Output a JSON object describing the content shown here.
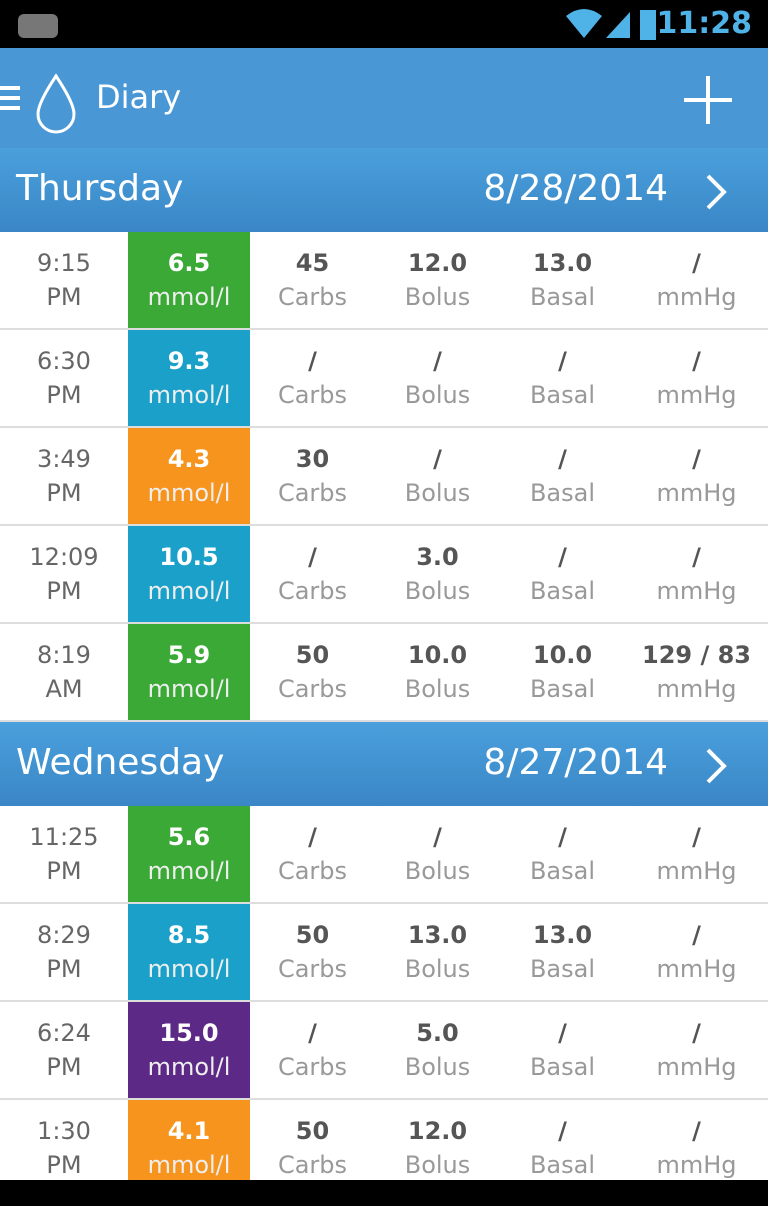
{
  "status_bar": {
    "time": "11:28"
  },
  "app_bar": {
    "title": "Diary"
  },
  "labels": {
    "unit": "mmol/l",
    "carbs": "Carbs",
    "bolus": "Bolus",
    "basal": "Basal",
    "pressure": "mmHg"
  },
  "days": [
    {
      "name": "Thursday",
      "date": "8/28/2014",
      "entries": [
        {
          "time": "9:15",
          "period": "PM",
          "glucose": "6.5",
          "color": "#3aa935",
          "carbs": "45",
          "bolus": "12.0",
          "basal": "13.0",
          "pressure": "/"
        },
        {
          "time": "6:30",
          "period": "PM",
          "glucose": "9.3",
          "color": "#1ba1c9",
          "carbs": "/",
          "bolus": "/",
          "basal": "/",
          "pressure": "/"
        },
        {
          "time": "3:49",
          "period": "PM",
          "glucose": "4.3",
          "color": "#f7941d",
          "carbs": "30",
          "bolus": "/",
          "basal": "/",
          "pressure": "/"
        },
        {
          "time": "12:09",
          "period": "PM",
          "glucose": "10.5",
          "color": "#1ba1c9",
          "carbs": "/",
          "bolus": "3.0",
          "basal": "/",
          "pressure": "/"
        },
        {
          "time": "8:19",
          "period": "AM",
          "glucose": "5.9",
          "color": "#3aa935",
          "carbs": "50",
          "bolus": "10.0",
          "basal": "10.0",
          "pressure": "129 / 83"
        }
      ]
    },
    {
      "name": "Wednesday",
      "date": "8/27/2014",
      "entries": [
        {
          "time": "11:25",
          "period": "PM",
          "glucose": "5.6",
          "color": "#3aa935",
          "carbs": "/",
          "bolus": "/",
          "basal": "/",
          "pressure": "/"
        },
        {
          "time": "8:29",
          "period": "PM",
          "glucose": "8.5",
          "color": "#1ba1c9",
          "carbs": "50",
          "bolus": "13.0",
          "basal": "13.0",
          "pressure": "/"
        },
        {
          "time": "6:24",
          "period": "PM",
          "glucose": "15.0",
          "color": "#5c2a86",
          "carbs": "/",
          "bolus": "5.0",
          "basal": "/",
          "pressure": "/"
        },
        {
          "time": "1:30",
          "period": "PM",
          "glucose": "4.1",
          "color": "#f7941d",
          "carbs": "50",
          "bolus": "12.0",
          "basal": "/",
          "pressure": "/"
        }
      ]
    }
  ]
}
